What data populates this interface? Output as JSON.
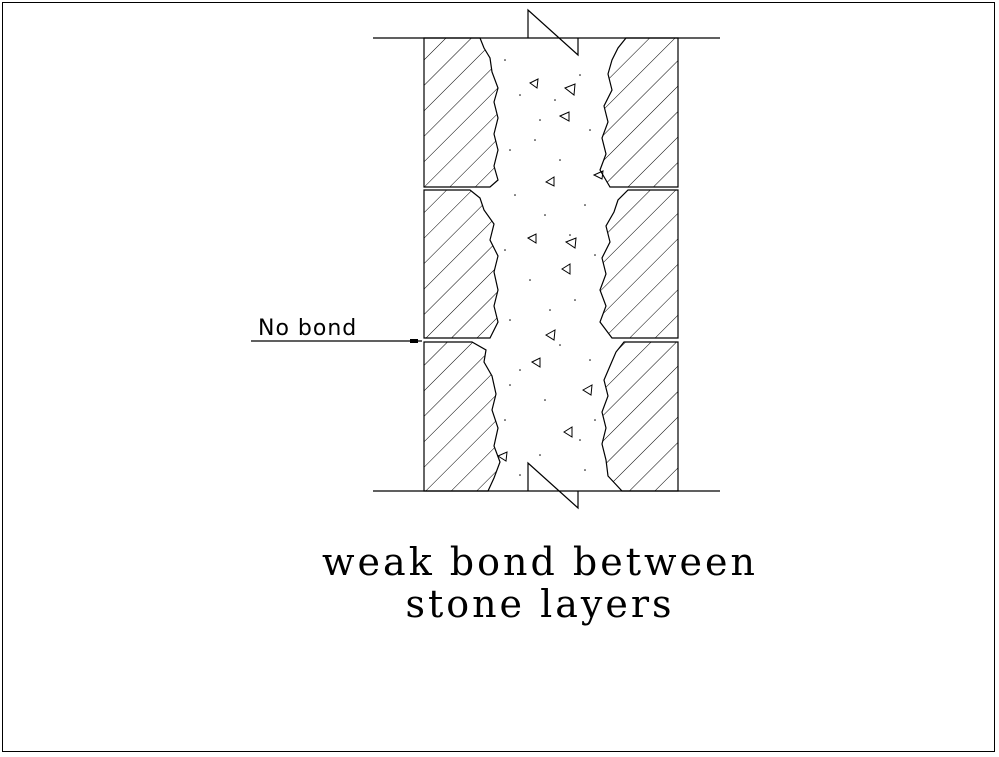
{
  "diagram": {
    "label_no_bond": "No bond",
    "caption_line_1": "weak bond between",
    "caption_line_2": "stone layers",
    "colors": {
      "line": "#000000",
      "background": "#ffffff"
    }
  }
}
